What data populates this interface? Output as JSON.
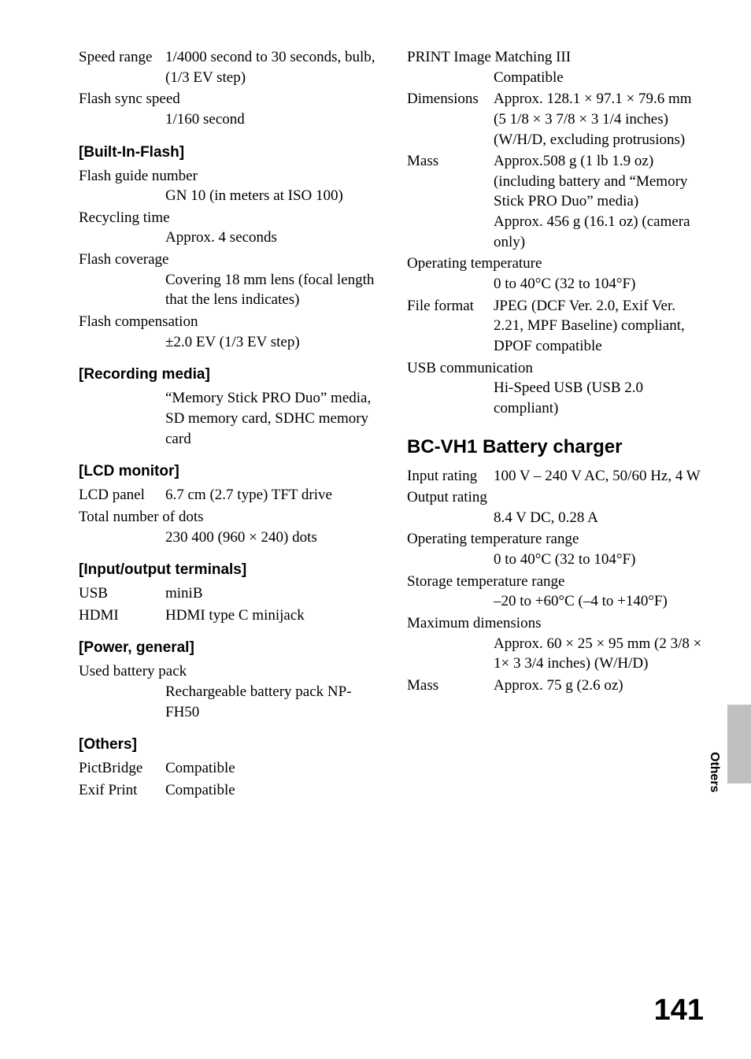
{
  "left": {
    "speed_range_label": "Speed range",
    "speed_range_value": "1/4000 second to 30 seconds, bulb, (1/3 EV step)",
    "flash_sync_label": "Flash sync speed",
    "flash_sync_value": "1/160 second",
    "built_in_flash_header": "[Built-In-Flash]",
    "flash_guide_label": "Flash guide number",
    "flash_guide_value": "GN 10 (in meters at ISO 100)",
    "recycling_label": "Recycling time",
    "recycling_value": "Approx. 4 seconds",
    "flash_coverage_label": "Flash coverage",
    "flash_coverage_value": "Covering 18 mm lens (focal length that the lens indicates)",
    "flash_comp_label": "Flash compensation",
    "flash_comp_value": "±2.0 EV (1/3 EV step)",
    "recording_media_header": "[Recording media]",
    "recording_media_value": "“Memory Stick PRO Duo” media, SD memory card, SDHC memory card",
    "lcd_monitor_header": "[LCD monitor]",
    "lcd_panel_label": "LCD panel",
    "lcd_panel_value": "6.7 cm (2.7 type) TFT drive",
    "total_dots_label": "Total number of dots",
    "total_dots_value": "230 400 (960 × 240) dots",
    "io_terminals_header": "[Input/output terminals]",
    "usb_label": "USB",
    "usb_value": "miniB",
    "hdmi_label": "HDMI",
    "hdmi_value": "HDMI type C minijack",
    "power_header": "[Power, general]",
    "battery_label": "Used battery pack",
    "battery_value": "Rechargeable battery pack NP-FH50",
    "others_header": "[Others]",
    "pictbridge_label": "PictBridge",
    "pictbridge_value": "Compatible",
    "exif_label": "Exif Print",
    "exif_value": "Compatible"
  },
  "right": {
    "print_label": "PRINT Image Matching III",
    "print_value": "Compatible",
    "dimensions_label": "Dimensions",
    "dimensions_value": "Approx. 128.1 × 97.1 × 79.6 mm (5 1/8 × 3 7/8 × 3 1/4 inches) (W/H/D, excluding protrusions)",
    "mass_label": "Mass",
    "mass_value": "Approx.508 g (1 lb 1.9 oz) (including battery and “Memory Stick PRO Duo” media)\nApprox. 456 g (16.1 oz) (camera only)",
    "op_temp_label": "Operating temperature",
    "op_temp_value": "0 to 40°C (32 to 104°F)",
    "file_format_label": "File format",
    "file_format_value": "JPEG (DCF Ver. 2.0, Exif Ver. 2.21, MPF Baseline) compliant, DPOF compatible",
    "usb_comm_label": "USB communication",
    "usb_comm_value": "Hi-Speed USB (USB 2.0 compliant)",
    "charger_header": "BC-VH1 Battery charger",
    "input_rating_label": "Input rating",
    "input_rating_value": "100 V – 240 V AC, 50/60 Hz, 4 W",
    "output_rating_label": "Output rating",
    "output_rating_value": " 8.4 V DC, 0.28 A",
    "op_temp_range_label": "Operating temperature range",
    "op_temp_range_value": "0 to 40°C (32 to 104°F)",
    "storage_temp_label": "Storage temperature range",
    "storage_temp_value": "–20 to +60°C (–4 to +140°F)",
    "max_dim_label": "Maximum dimensions",
    "max_dim_value": "Approx. 60 × 25 × 95 mm (2 3/8 × 1× 3 3/4 inches) (W/H/D)",
    "charger_mass_label": "Mass",
    "charger_mass_value": "Approx. 75 g (2.6 oz)"
  },
  "side_label": "Others",
  "page_number": "141"
}
